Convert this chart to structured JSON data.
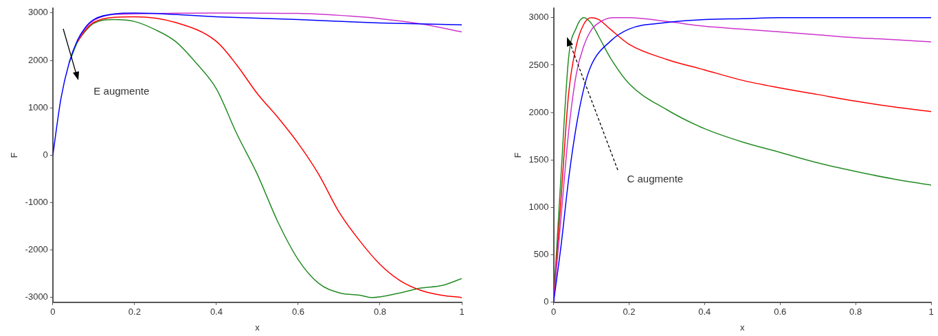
{
  "chart_data": [
    {
      "type": "line",
      "xlabel": "x",
      "ylabel": "F",
      "annotations": [
        "E augmente"
      ],
      "xlim": [
        0,
        1
      ],
      "xticks": [
        0,
        0.2,
        0.4,
        0.6,
        0.8,
        1
      ],
      "ylim": [
        -3100,
        3100
      ],
      "yticks": [
        -3000,
        -2000,
        -1000,
        0,
        1000,
        2000,
        3000
      ],
      "marker": "none",
      "line_style": "solid",
      "series": [
        {
          "color": "#0000ff",
          "x": [
            0,
            0.02,
            0.04,
            0.06,
            0.08,
            0.1,
            0.15,
            0.2,
            0.4,
            0.6,
            0.8,
            1
          ],
          "values": [
            0,
            1200,
            1950,
            2420,
            2700,
            2860,
            2980,
            3000,
            2920,
            2860,
            2790,
            2750
          ]
        },
        {
          "color": "#cc33cc",
          "x": [
            0.06,
            0.08,
            0.1,
            0.15,
            0.4,
            0.6,
            0.7,
            0.8,
            0.9,
            1
          ],
          "values": [
            2410,
            2680,
            2840,
            2970,
            3000,
            2990,
            2950,
            2880,
            2770,
            2600
          ]
        },
        {
          "color": "#ff0000",
          "x": [
            0.06,
            0.08,
            0.1,
            0.15,
            0.2,
            0.3,
            0.4,
            0.45,
            0.5,
            0.55,
            0.6,
            0.65,
            0.7,
            0.75,
            0.8,
            0.85,
            0.9,
            0.95,
            1
          ],
          "values": [
            2390,
            2640,
            2800,
            2910,
            2920,
            2800,
            2400,
            1900,
            1300,
            800,
            250,
            -400,
            -1200,
            -1800,
            -2300,
            -2650,
            -2850,
            -2950,
            -3000
          ]
        },
        {
          "color": "#228b22",
          "x": [
            0.04,
            0.06,
            0.08,
            0.1,
            0.15,
            0.2,
            0.25,
            0.3,
            0.35,
            0.4,
            0.45,
            0.5,
            0.55,
            0.6,
            0.65,
            0.7,
            0.75,
            0.78,
            0.85,
            0.9,
            0.95,
            1
          ],
          "values": [
            1950,
            2380,
            2620,
            2780,
            2860,
            2820,
            2650,
            2400,
            1950,
            1400,
            450,
            -400,
            -1400,
            -2200,
            -2700,
            -2900,
            -2950,
            -3000,
            -2900,
            -2800,
            -2750,
            -2600
          ]
        }
      ]
    },
    {
      "type": "line",
      "xlabel": "x",
      "ylabel": "F",
      "annotations": [
        {
          "text": "C augmente",
          "x": 0.04,
          "y": 2750
        }
      ],
      "xlim": [
        0,
        1
      ],
      "xticks": [
        0,
        0.2,
        0.4,
        0.6,
        0.8,
        1
      ],
      "ylim": [
        0,
        3100
      ],
      "yticks": [
        0,
        500,
        1000,
        1500,
        2000,
        2500,
        3000
      ],
      "marker": "none",
      "line_style": "solid",
      "series": [
        {
          "color": "#0000ff",
          "x": [
            0,
            0.02,
            0.04,
            0.06,
            0.08,
            0.1,
            0.15,
            0.2,
            0.3,
            0.4,
            0.5,
            0.6,
            0.8,
            1
          ],
          "values": [
            0,
            600,
            1300,
            1850,
            2250,
            2500,
            2750,
            2880,
            2950,
            2980,
            2990,
            3000,
            3000,
            3000
          ]
        },
        {
          "color": "#cc33cc",
          "x": [
            0,
            0.02,
            0.04,
            0.06,
            0.08,
            0.1,
            0.13,
            0.16,
            0.2,
            0.3,
            0.4,
            0.5,
            0.6,
            0.7,
            0.8,
            0.9,
            1
          ],
          "values": [
            0,
            900,
            1800,
            2400,
            2700,
            2870,
            2970,
            3000,
            3000,
            2960,
            2910,
            2880,
            2850,
            2820,
            2790,
            2770,
            2745
          ]
        },
        {
          "color": "#ff0000",
          "x": [
            0,
            0.02,
            0.04,
            0.06,
            0.08,
            0.1,
            0.12,
            0.15,
            0.2,
            0.3,
            0.4,
            0.5,
            0.6,
            0.7,
            0.8,
            0.9,
            1
          ],
          "values": [
            0,
            1100,
            2200,
            2700,
            2930,
            3000,
            2980,
            2880,
            2720,
            2560,
            2450,
            2340,
            2260,
            2190,
            2120,
            2060,
            2010
          ]
        },
        {
          "color": "#228b22",
          "x": [
            0,
            0.02,
            0.04,
            0.06,
            0.08,
            0.1,
            0.12,
            0.15,
            0.2,
            0.3,
            0.4,
            0.5,
            0.6,
            0.7,
            0.8,
            0.9,
            1
          ],
          "values": [
            0,
            1350,
            2580,
            2890,
            3000,
            2940,
            2800,
            2580,
            2305,
            2030,
            1830,
            1690,
            1580,
            1470,
            1380,
            1300,
            1235
          ]
        }
      ]
    }
  ]
}
